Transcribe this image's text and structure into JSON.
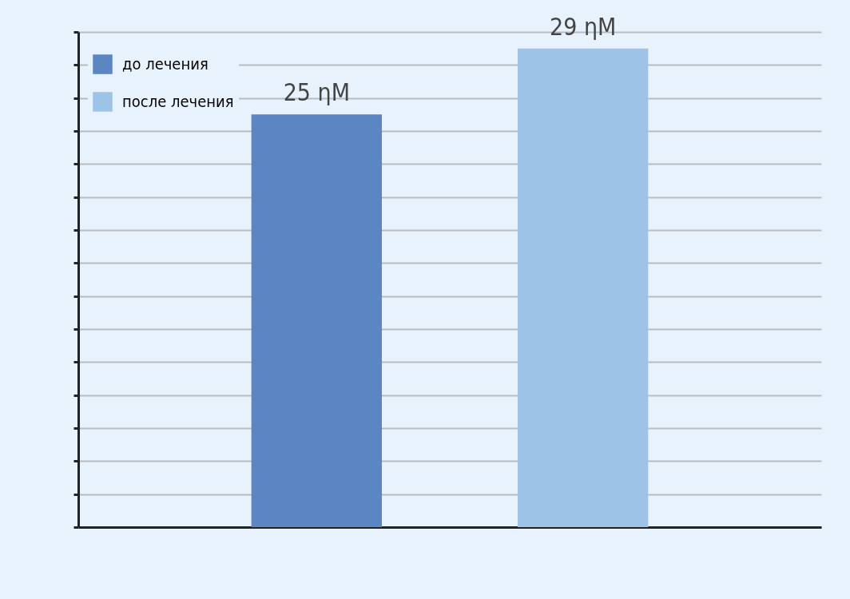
{
  "chart_data": {
    "type": "bar",
    "categories": [
      null,
      null
    ],
    "series": [
      {
        "name": "до лечения",
        "color": "#5b86c2",
        "values": [
          25,
          null
        ],
        "value_labels": [
          "25 ηM",
          null
        ]
      },
      {
        "name": "после лечения",
        "color": "#9dc3e6",
        "values": [
          null,
          29
        ],
        "value_labels": [
          null,
          "29 ηM"
        ]
      }
    ],
    "stacked": true,
    "grid": "y",
    "legend": "top left",
    "tick_labels": false
  }
}
